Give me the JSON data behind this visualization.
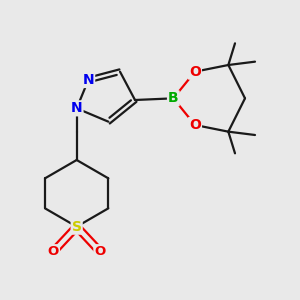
{
  "background_color": "#e9e9e9",
  "bond_color": "#1a1a1a",
  "atom_colors": {
    "N": "#0000ee",
    "B": "#00aa00",
    "O": "#ee0000",
    "S": "#cccc00",
    "C": "#1a1a1a"
  },
  "figsize": [
    3.0,
    3.0
  ],
  "dpi": 100,
  "thiane": {
    "Sx": 2.8,
    "Sy": 2.2,
    "C2lx": 1.85,
    "C2ly": 2.75,
    "C3lx": 1.85,
    "C3ly": 3.65,
    "C4x": 2.8,
    "C4y": 4.2,
    "C3rx": 3.75,
    "C3ry": 3.65,
    "C2rx": 3.75,
    "C2ry": 2.75,
    "Olx": 2.1,
    "Oly": 1.45,
    "Orx": 3.5,
    "Ory": 1.45
  },
  "linker": {
    "CH2x": 2.8,
    "CH2y": 5.05
  },
  "pyrazole": {
    "N1x": 2.8,
    "N1y": 5.75,
    "N2x": 3.15,
    "N2y": 6.6,
    "C3x": 4.1,
    "C3y": 6.85,
    "C4x": 4.55,
    "C4y": 6.0,
    "C5x": 3.75,
    "C5y": 5.35
  },
  "boronate": {
    "Bx": 5.7,
    "By": 6.05,
    "O1x": 6.35,
    "O1y": 6.85,
    "O2x": 6.35,
    "O2y": 5.25,
    "Cax": 7.35,
    "Cay": 7.05,
    "Cbx": 7.35,
    "Cby": 5.05,
    "Ccx": 7.85,
    "Ccy": 6.05,
    "Me1ax": 7.55,
    "Me1ay": 7.7,
    "Me2ax": 8.15,
    "Me2ay": 7.15,
    "Me1bx": 7.55,
    "Me1by": 4.4,
    "Me2bx": 8.15,
    "Me2by": 4.95
  }
}
